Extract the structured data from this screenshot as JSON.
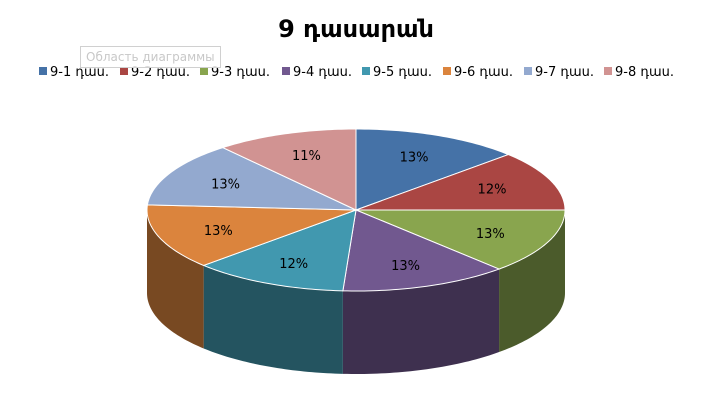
{
  "chart_data": {
    "type": "pie",
    "title": "9 դասարան",
    "legend_position": "top",
    "categories": [
      "9-1 դաս.",
      "9-2 դաս.",
      "9-3 դաս.",
      "9-4 դաս.",
      "9-5 դաս.",
      "9-6 դաս.",
      "9-7 դաս.",
      "9-8 դաս."
    ],
    "values": [
      13,
      12,
      13,
      13,
      12,
      13,
      13,
      11
    ],
    "data_labels": [
      "13%",
      "12%",
      "13%",
      "13%",
      "12%",
      "13%",
      "13%",
      "11%"
    ],
    "colors": [
      "#4572A7",
      "#AA4643",
      "#89A54E",
      "#71588F",
      "#4198AF",
      "#DB843D",
      "#93A9CF",
      "#D19392"
    ]
  },
  "tooltip": {
    "text": "Область диаграммы"
  }
}
